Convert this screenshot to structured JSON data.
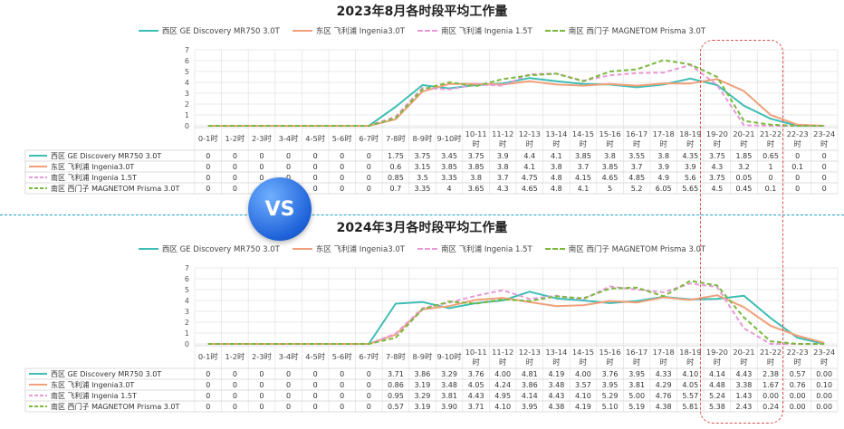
{
  "chart_data": [
    {
      "type": "line",
      "title": "2023年8月各时段平均工作量",
      "categories": [
        "0-1时",
        "1-2时",
        "2-3时",
        "3-4时",
        "4-5时",
        "5-6时",
        "6-7时",
        "7-8时",
        "8-9时",
        "9-10时",
        "10-11时",
        "11-12时",
        "12-13时",
        "13-14时",
        "14-15时",
        "15-16时",
        "16-17时",
        "17-18时",
        "18-19时",
        "19-20时",
        "20-21时",
        "21-22时",
        "22-23时",
        "23-24时"
      ],
      "ylim": [
        0,
        7
      ],
      "yticks": [
        0,
        1,
        2,
        3,
        4,
        5,
        6,
        7
      ],
      "table_labels": [
        "0",
        "0",
        "0",
        "0",
        "0",
        "0",
        "0",
        "1.75",
        "3.75",
        "3.45",
        "3.75",
        "3.9",
        "4.4",
        "4.1",
        "3.85",
        "3.8",
        "3.55",
        "3.8",
        "4.35",
        "3.75",
        "1.85",
        "0.65",
        "0",
        "0"
      ],
      "series": [
        {
          "name": "西区 GE Discovery MR750 3.0T",
          "color": "#3dbdb4",
          "dash": false,
          "values": [
            0,
            0,
            0,
            0,
            0,
            0,
            0,
            1.75,
            3.75,
            3.45,
            3.75,
            3.9,
            4.4,
            4.1,
            3.85,
            3.8,
            3.55,
            3.8,
            4.35,
            3.75,
            1.85,
            0.65,
            0,
            0
          ],
          "labels": [
            "0",
            "0",
            "0",
            "0",
            "0",
            "0",
            "0",
            "1.75",
            "3.75",
            "3.45",
            "3.75",
            "3.9",
            "4.4",
            "4.1",
            "3.85",
            "3.8",
            "3.55",
            "3.8",
            "4.35",
            "3.75",
            "1.85",
            "0.65",
            "0",
            "0"
          ]
        },
        {
          "name": "东区 飞利浦 Ingenia3.0T",
          "color": "#f0a07a",
          "dash": false,
          "values": [
            0,
            0,
            0,
            0,
            0,
            0,
            0,
            0.6,
            3.15,
            3.85,
            3.85,
            3.8,
            4.1,
            3.8,
            3.7,
            3.85,
            3.7,
            3.9,
            3.9,
            4.3,
            3.2,
            1,
            0.1,
            0
          ],
          "labels": [
            "0",
            "0",
            "0",
            "0",
            "0",
            "0",
            "0",
            "0.6",
            "3.15",
            "3.85",
            "3.85",
            "3.8",
            "4.1",
            "3.8",
            "3.7",
            "3.85",
            "3.7",
            "3.9",
            "3.9",
            "4.3",
            "3.2",
            "1",
            "0.1",
            "0"
          ]
        },
        {
          "name": "南区 飞利浦 Ingenia 1.5T",
          "color": "#e79ad6",
          "dash": true,
          "values": [
            0,
            0,
            0,
            0,
            0,
            0,
            0,
            0.85,
            3.5,
            3.35,
            3.8,
            3.7,
            4.75,
            4.8,
            4.15,
            4.65,
            4.85,
            4.9,
            5.6,
            3.75,
            0.05,
            0,
            0,
            0
          ],
          "labels": [
            "0",
            "0",
            "0",
            "0",
            "0",
            "0",
            "0",
            "0.85",
            "3.5",
            "3.35",
            "3.8",
            "3.7",
            "4.75",
            "4.8",
            "4.15",
            "4.65",
            "4.85",
            "4.9",
            "5.6",
            "3.75",
            "0.05",
            "0",
            "0",
            "0"
          ]
        },
        {
          "name": "南区 西门子 MAGNETOM Prisma 3.0T",
          "color": "#7ab83c",
          "dash": true,
          "values": [
            0,
            0,
            0,
            0,
            0,
            0,
            0,
            0.7,
            3.35,
            4,
            3.65,
            4.3,
            4.65,
            4.8,
            4.1,
            5,
            5.2,
            6.05,
            5.65,
            4.5,
            0.45,
            0.1,
            0,
            0
          ],
          "labels": [
            "0",
            "0",
            "0",
            "0",
            "0",
            "0",
            "0",
            "0.7",
            "3.35",
            "4",
            "3.65",
            "4.3",
            "4.65",
            "4.8",
            "4.1",
            "5",
            "5.2",
            "6.05",
            "5.65",
            "4.5",
            "0.45",
            "0.1",
            "0",
            "0"
          ]
        }
      ]
    },
    {
      "type": "line",
      "title": "2024年3月各时段平均工作量",
      "categories": [
        "0-1时",
        "1-2时",
        "2-3时",
        "3-4时",
        "4-5时",
        "5-6时",
        "6-7时",
        "7-8时",
        "8-9时",
        "9-10时",
        "10-11时",
        "11-12时",
        "12-13时",
        "13-14时",
        "14-15时",
        "15-16时",
        "16-17时",
        "17-18时",
        "18-19时",
        "19-20时",
        "20-21时",
        "21-22时",
        "22-23时",
        "23-24时"
      ],
      "ylim": [
        0,
        7
      ],
      "yticks": [
        0,
        1,
        2,
        3,
        4,
        5,
        6,
        7
      ],
      "series": [
        {
          "name": "西区 GE Discovery MR750 3.0T",
          "color": "#3dbdb4",
          "dash": false,
          "values": [
            0,
            0,
            0,
            0,
            0,
            0,
            0,
            3.71,
            3.86,
            3.29,
            3.76,
            4.0,
            4.81,
            4.19,
            4.0,
            3.76,
            3.95,
            4.33,
            4.1,
            4.14,
            4.43,
            2.38,
            0.57,
            0.0
          ],
          "labels": [
            "0",
            "0",
            "0",
            "0",
            "0",
            "0",
            "0",
            "3.71",
            "3.86",
            "3.29",
            "3.76",
            "4.00",
            "4.81",
            "4.19",
            "4.00",
            "3.76",
            "3.95",
            "4.33",
            "4.10",
            "4.14",
            "4.43",
            "2.38",
            "0.57",
            "0.00"
          ]
        },
        {
          "name": "东区 飞利浦 Ingenia3.0T",
          "color": "#f0a07a",
          "dash": false,
          "values": [
            0,
            0,
            0,
            0,
            0,
            0,
            0,
            0.86,
            3.19,
            3.48,
            4.05,
            4.24,
            3.86,
            3.48,
            3.57,
            3.95,
            3.81,
            4.29,
            4.05,
            4.48,
            3.38,
            1.67,
            0.76,
            0.1
          ],
          "labels": [
            "0",
            "0",
            "0",
            "0",
            "0",
            "0",
            "0",
            "0.86",
            "3.19",
            "3.48",
            "4.05",
            "4.24",
            "3.86",
            "3.48",
            "3.57",
            "3.95",
            "3.81",
            "4.29",
            "4.05",
            "4.48",
            "3.38",
            "1.67",
            "0.76",
            "0.10"
          ]
        },
        {
          "name": "南区 飞利浦 Ingenia 1.5T",
          "color": "#e79ad6",
          "dash": true,
          "values": [
            0,
            0,
            0,
            0,
            0,
            0,
            0,
            0.95,
            3.29,
            3.81,
            4.43,
            4.95,
            4.14,
            4.43,
            4.1,
            5.29,
            5.0,
            4.76,
            5.57,
            5.24,
            1.43,
            0.0,
            0.0,
            0.0
          ],
          "labels": [
            "0",
            "0",
            "0",
            "0",
            "0",
            "0",
            "0",
            "0.95",
            "3.29",
            "3.81",
            "4.43",
            "4.95",
            "4.14",
            "4.43",
            "4.10",
            "5.29",
            "5.00",
            "4.76",
            "5.57",
            "5.24",
            "1.43",
            "0.00",
            "0.00",
            "0.00"
          ]
        },
        {
          "name": "南区 西门子 MAGNETOM Prisma 3.0T",
          "color": "#7ab83c",
          "dash": true,
          "values": [
            0,
            0,
            0,
            0,
            0,
            0,
            0,
            0.57,
            3.19,
            3.9,
            3.71,
            4.1,
            3.95,
            4.38,
            4.19,
            5.1,
            5.19,
            4.38,
            5.81,
            5.38,
            2.43,
            0.24,
            0.0,
            0.0
          ],
          "labels": [
            "0",
            "0",
            "0",
            "0",
            "0",
            "0",
            "0",
            "0.57",
            "3.19",
            "3.90",
            "3.71",
            "4.10",
            "3.95",
            "4.38",
            "4.19",
            "5.10",
            "5.19",
            "4.38",
            "5.81",
            "5.38",
            "2.43",
            "0.24",
            "0.00",
            "0.00"
          ]
        }
      ]
    }
  ],
  "vs_label": "VS",
  "colors": {
    "divider": "#1aa0c8",
    "highlight": "#d9534f",
    "grid": "#e2e2e2"
  }
}
